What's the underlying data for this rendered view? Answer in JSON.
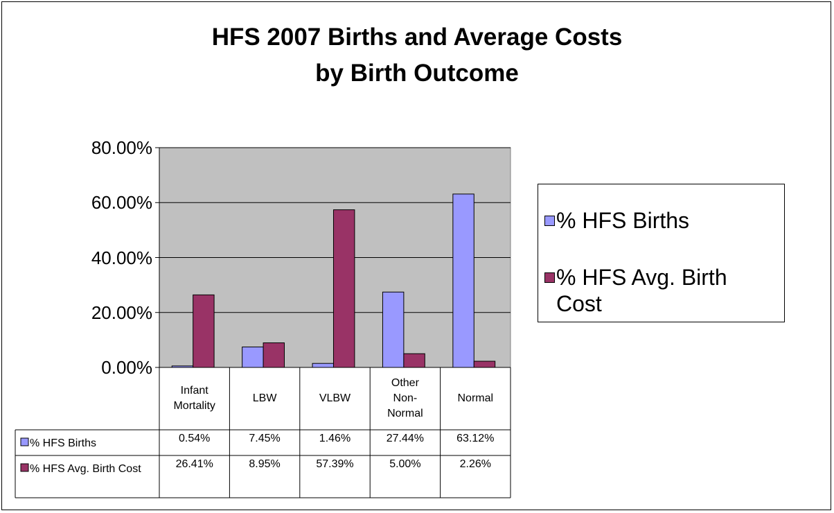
{
  "chart_data": {
    "type": "bar",
    "title_lines": [
      "HFS 2007 Births and Average Costs",
      "by Birth Outcome"
    ],
    "categories": [
      "Infant Mortality",
      "LBW",
      "VLBW",
      "Other Non-Normal",
      "Normal"
    ],
    "series": [
      {
        "name": "% HFS Births",
        "color": "#9999ff",
        "values": [
          0.54,
          7.45,
          1.46,
          27.44,
          63.12
        ],
        "value_labels": [
          "0.54%",
          "7.45%",
          "1.46%",
          "27.44%",
          "63.12%"
        ]
      },
      {
        "name": "% HFS Avg. Birth Cost",
        "color": "#993366",
        "values": [
          26.41,
          8.95,
          57.39,
          5.0,
          2.26
        ],
        "value_labels": [
          "26.41%",
          "8.95%",
          "57.39%",
          "5.00%",
          "2.26%"
        ]
      }
    ],
    "ylim": [
      0,
      80
    ],
    "yticks": [
      {
        "value": 0,
        "label": "0.00%"
      },
      {
        "value": 20,
        "label": "20.00%"
      },
      {
        "value": 40,
        "label": "40.00%"
      },
      {
        "value": 60,
        "label": "60.00%"
      },
      {
        "value": 80,
        "label": "80.00%"
      }
    ],
    "grid": true,
    "plot_background": "#c0c0c0",
    "legend": "right"
  }
}
